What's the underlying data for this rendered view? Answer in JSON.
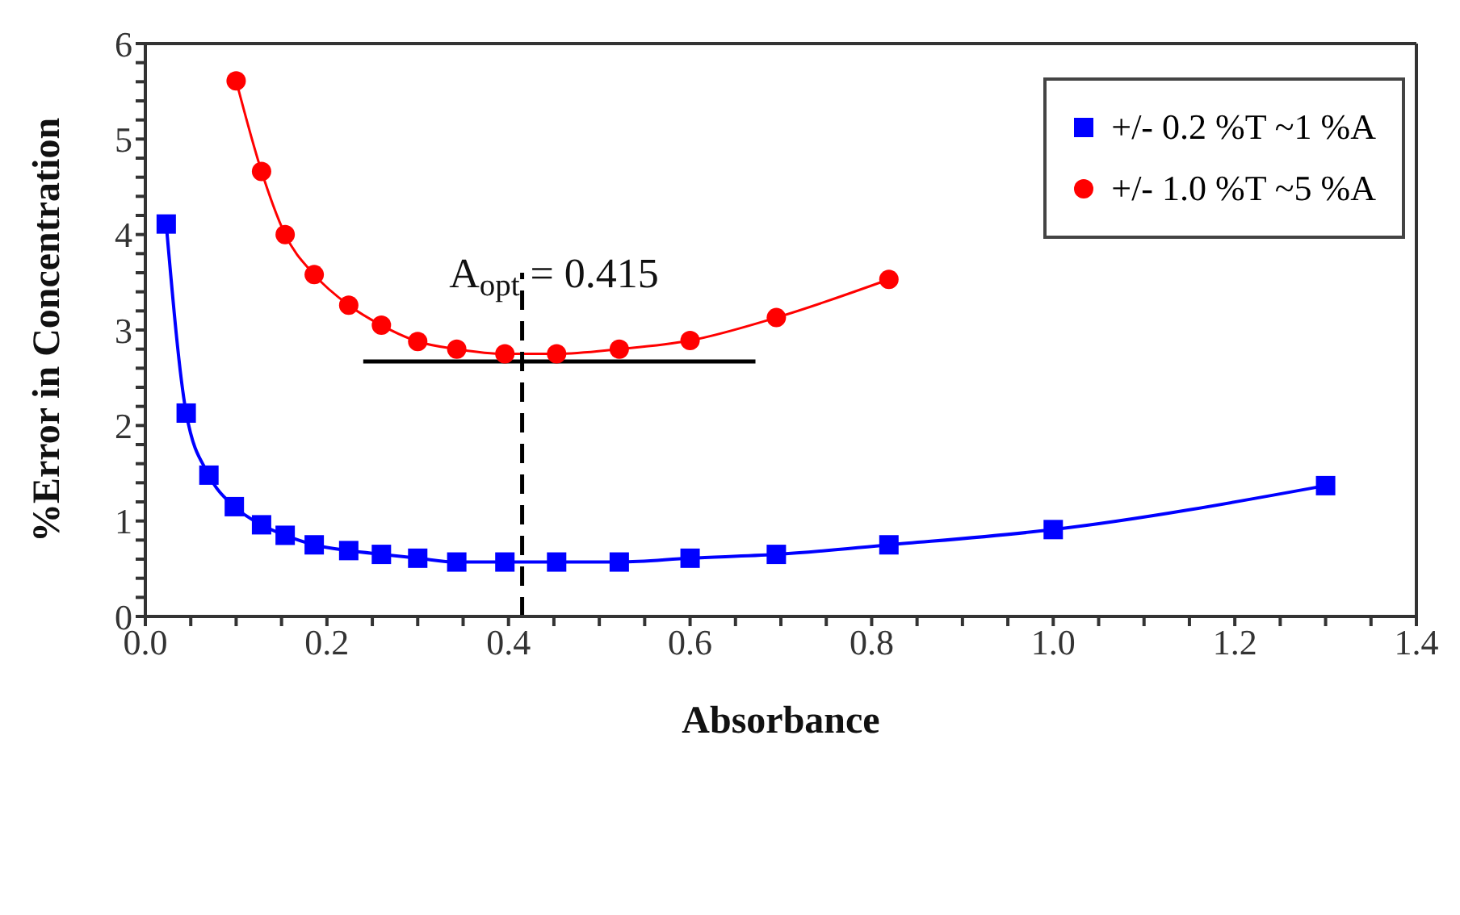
{
  "chart_data": {
    "type": "line",
    "xlabel": "Absorbance",
    "ylabel": "%Error in Concentration",
    "xlim": [
      0,
      1.4
    ],
    "ylim": [
      0,
      6
    ],
    "xticks": [
      {
        "value": 0,
        "label": "0.0"
      },
      {
        "value": 0.05,
        "label": null
      },
      {
        "value": 0.1,
        "label": null
      },
      {
        "value": 0.15,
        "label": null
      },
      {
        "value": 0.2,
        "label": "0.2"
      },
      {
        "value": 0.25,
        "label": null
      },
      {
        "value": 0.3,
        "label": null
      },
      {
        "value": 0.35,
        "label": null
      },
      {
        "value": 0.4,
        "label": "0.4"
      },
      {
        "value": 0.45,
        "label": null
      },
      {
        "value": 0.5,
        "label": null
      },
      {
        "value": 0.55,
        "label": null
      },
      {
        "value": 0.6,
        "label": "0.6"
      },
      {
        "value": 0.65,
        "label": null
      },
      {
        "value": 0.7,
        "label": null
      },
      {
        "value": 0.75,
        "label": null
      },
      {
        "value": 0.8,
        "label": "0.8"
      },
      {
        "value": 0.85,
        "label": null
      },
      {
        "value": 0.9,
        "label": null
      },
      {
        "value": 0.95,
        "label": null
      },
      {
        "value": 1,
        "label": "1.0"
      },
      {
        "value": 1.05,
        "label": null
      },
      {
        "value": 1.1,
        "label": null
      },
      {
        "value": 1.15,
        "label": null
      },
      {
        "value": 1.2,
        "label": "1.2"
      },
      {
        "value": 1.25,
        "label": null
      },
      {
        "value": 1.3,
        "label": null
      },
      {
        "value": 1.35,
        "label": null
      },
      {
        "value": 1.4,
        "label": "1.4"
      }
    ],
    "yticks": [
      0,
      {
        "value": 0.2,
        "label": null
      },
      {
        "value": 0.4,
        "label": null
      },
      {
        "value": 0.6,
        "label": null
      },
      {
        "value": 0.8,
        "label": null
      },
      1,
      {
        "value": 1.2,
        "label": null
      },
      {
        "value": 1.4,
        "label": null
      },
      {
        "value": 1.6,
        "label": null
      },
      {
        "value": 1.8,
        "label": null
      },
      2,
      {
        "value": 2.2,
        "label": null
      },
      {
        "value": 2.4,
        "label": null
      },
      {
        "value": 2.6,
        "label": null
      },
      {
        "value": 2.8,
        "label": null
      },
      3,
      {
        "value": 3.2,
        "label": null
      },
      {
        "value": 3.4,
        "label": null
      },
      {
        "value": 3.6,
        "label": null
      },
      {
        "value": 3.8,
        "label": null
      },
      4,
      {
        "value": 4.2,
        "label": null
      },
      {
        "value": 4.4,
        "label": null
      },
      {
        "value": 4.6,
        "label": null
      },
      {
        "value": 4.8,
        "label": null
      },
      5,
      {
        "value": 5.2,
        "label": null
      },
      {
        "value": 5.4,
        "label": null
      },
      {
        "value": 5.6,
        "label": null
      },
      {
        "value": 5.8,
        "label": null
      },
      6
    ],
    "legend": "top right",
    "series": [
      {
        "name": "+/- 0.2 %T ~1 %A",
        "color": "#0000ff",
        "marker": "square",
        "x": [
          0.023,
          0.045,
          0.07,
          0.098,
          0.128,
          0.154,
          0.186,
          0.224,
          0.26,
          0.3,
          0.343,
          0.396,
          0.453,
          0.522,
          0.6,
          0.695,
          0.819,
          1.0,
          1.3
        ],
        "values": [
          4.11,
          2.13,
          1.48,
          1.15,
          0.96,
          0.85,
          0.75,
          0.69,
          0.65,
          0.61,
          0.57,
          0.57,
          0.57,
          0.57,
          0.61,
          0.65,
          0.75,
          0.91,
          1.37
        ]
      },
      {
        "name": "+/- 1.0 %T ~5 %A",
        "color": "#ff0000",
        "marker": "circle",
        "x": [
          0.1,
          0.128,
          0.154,
          0.186,
          0.224,
          0.26,
          0.3,
          0.343,
          0.396,
          0.453,
          0.522,
          0.6,
          0.695,
          0.819
        ],
        "values": [
          5.61,
          4.66,
          4.0,
          3.58,
          3.26,
          3.05,
          2.88,
          2.8,
          2.75,
          2.75,
          2.8,
          2.89,
          3.13,
          3.53
        ]
      },
      {
        "color": "#000000",
        "marker": "none",
        "line_style": "solid",
        "x": [
          0.24,
          0.672
        ],
        "values": [
          2.67,
          2.67
        ]
      },
      {
        "color": "#000000",
        "marker": "none",
        "line_style": "dashed",
        "x": [
          0.415,
          0.415
        ],
        "values": [
          0,
          3.6
        ]
      }
    ],
    "annotations": [
      "A$_{opt}$ = 0.415"
    ]
  }
}
